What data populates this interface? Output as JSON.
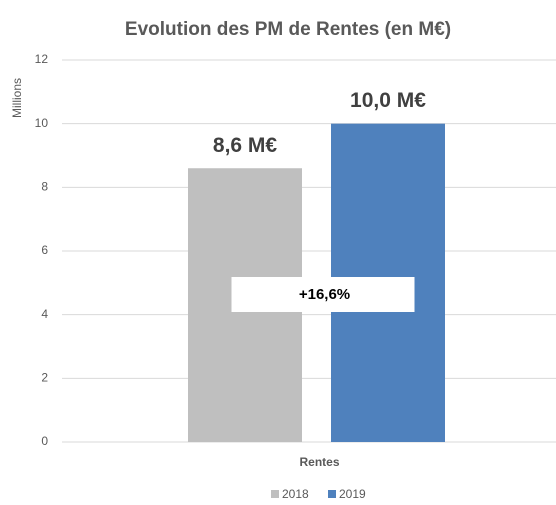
{
  "chart_data": {
    "type": "bar",
    "title": "Evolution des PM de Rentes (en M€)",
    "y_axis_label": "Millions",
    "categories": [
      "Rentes"
    ],
    "series": [
      {
        "name": "2018",
        "color": "#bfbfbf",
        "values": [
          8.6
        ],
        "value_labels": [
          "8,6 M€"
        ]
      },
      {
        "name": "2019",
        "color": "#4f81bd",
        "values": [
          10.0
        ],
        "value_labels": [
          "10,0 M€"
        ]
      }
    ],
    "annotation": "+16,6%",
    "ylim": [
      0,
      12
    ],
    "yticks": [
      0,
      2,
      4,
      6,
      8,
      10,
      12
    ],
    "grid": true,
    "legend": "bottom"
  }
}
